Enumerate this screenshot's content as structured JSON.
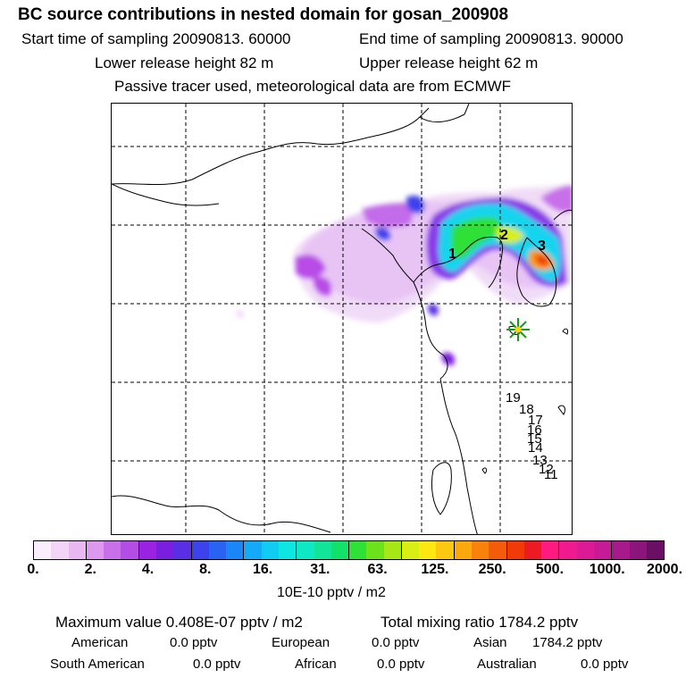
{
  "header": {
    "title": "BC  source contributions in nested domain for gosan_200908",
    "start_time": "Start time of sampling 20090813. 60000",
    "end_time": "End time of sampling 20090813. 90000",
    "lower_release": "Lower release height   82 m",
    "upper_release": "Upper release height   62 m",
    "info": "Passive tracer used, meteorological data are from ECMWF"
  },
  "map": {
    "trajectory_labels": [
      "1",
      "2",
      "3",
      "19",
      "18",
      "17",
      "16",
      "15",
      "14",
      "13",
      "12",
      "11"
    ],
    "receptor_marker": "star-icon"
  },
  "colorbar": {
    "tick_labels": [
      "0.",
      "2.",
      "4.",
      "8.",
      "16.",
      "31.",
      "63.",
      "125.",
      "250.",
      "500.",
      "1000.",
      "2000."
    ],
    "unit": "10E-10 pptv / m2",
    "colors": [
      "#fbeefc",
      "#f3d4f7",
      "#e9b8f3",
      "#dd98ef",
      "#c870ea",
      "#b44ce6",
      "#9a22e2",
      "#7a1fe0",
      "#5a2ee5",
      "#3d43ec",
      "#2a62f3",
      "#1a86f8",
      "#14aaf7",
      "#10ccf2",
      "#0ee6e4",
      "#0ee8c4",
      "#12e49a",
      "#12e26a",
      "#2ee038",
      "#6be21c",
      "#a6e817",
      "#d8ee14",
      "#fde812",
      "#fcc810",
      "#fba80e",
      "#f8820c",
      "#f45c0a",
      "#f03a0a",
      "#ee1a22",
      "#ff1a82",
      "#ee1a8e",
      "#dc1a96",
      "#c61a96",
      "#a81a8c",
      "#8a167c",
      "#6a0e66"
    ]
  },
  "summary": {
    "max_value": "Maximum value  0.408E-07 pptv / m2",
    "total_mixing": "Total mixing ratio     1784.2 pptv",
    "american_label": "American",
    "american_value": "0.0 pptv",
    "european_label": "European",
    "european_value": "0.0 pptv",
    "asian_label": "Asian",
    "asian_value": "1784.2 pptv",
    "south_american_label": "South American",
    "south_american_value": "0.0 pptv",
    "african_label": "African",
    "african_value": "0.0 pptv",
    "australian_label": "Australian",
    "australian_value": "0.0 pptv"
  }
}
